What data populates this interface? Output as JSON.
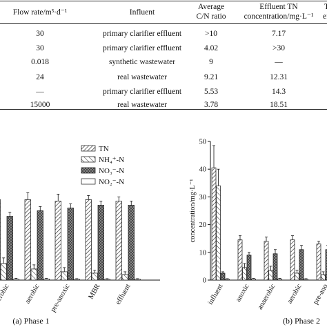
{
  "table": {
    "headers": {
      "flow_rate": "Flow rate/m³·d⁻¹",
      "influent": "Influent",
      "cn_line1": "Average",
      "cn_line2": "C/N ratio",
      "tn_line1": "Effluent TN",
      "tn_line2": "concentration/mg·L⁻¹",
      "cut_line1": "TN",
      "cut_line2": "ef"
    },
    "rows": [
      {
        "flow": "30",
        "influent": "primary clarifier effluent",
        "cn": ">10",
        "tn": "7.17"
      },
      {
        "flow": "30",
        "influent": "primary clarifier effluent",
        "cn": "4.02",
        "tn": ">30"
      },
      {
        "flow": "0.018",
        "influent": "synthetic wastewater",
        "cn": "9",
        "tn": "—"
      },
      {
        "flow": "24",
        "influent": "real wastewater",
        "cn": "9.21",
        "tn": "12.31"
      },
      {
        "flow": "—",
        "influent": "primary clarifier effluent",
        "cn": "5.53",
        "tn": "14.3"
      },
      {
        "flow": "15000",
        "influent": "real wastewater",
        "cn": "3.78",
        "tn": "18.51"
      }
    ]
  },
  "colors": {
    "ink": "#111111",
    "light_fill": "#e8e8e8",
    "dark_fill": "#8a8a8a"
  },
  "chart_data": [
    {
      "type": "bar",
      "caption": "(a) Phase 1",
      "categories": [
        "aerobic",
        "aerobic",
        "pre-anoxic",
        "MBR",
        "effluent"
      ],
      "legend": [
        "TN",
        "NH₄⁺-N",
        "NO₃⁻-N",
        "NO₂⁻-N"
      ],
      "legend_position": "top-right",
      "ylim": [
        0,
        50
      ],
      "series": [
        {
          "name": "TN",
          "values": [
            29,
            29,
            28.5,
            29,
            28.5
          ],
          "errors": [
            2.5,
            2.5,
            2.5,
            1.5,
            1.5
          ]
        },
        {
          "name": "NH₄⁺-N",
          "values": [
            6,
            4,
            3,
            2.5,
            2
          ],
          "errors": [
            2,
            1.5,
            1.5,
            1,
            1
          ]
        },
        {
          "name": "NO₃⁻-N",
          "values": [
            23,
            25,
            26,
            27,
            27
          ],
          "errors": [
            1.5,
            1.5,
            1.5,
            1.5,
            1.5
          ]
        },
        {
          "name": "NO₂⁻-N",
          "values": [
            0.4,
            0.4,
            0.3,
            0.3,
            0.3
          ],
          "errors": [
            0.2,
            0.2,
            0.2,
            0.2,
            0.2
          ]
        }
      ]
    },
    {
      "type": "bar",
      "caption": "(b) Phase 2",
      "ylabel": "concentration/mg·L⁻¹",
      "categories": [
        "influent",
        "anoxic",
        "anaerobic",
        "aerobic",
        "pre-ano"
      ],
      "ylim": [
        0,
        50
      ],
      "yticks": [
        "0",
        "10",
        "20",
        "30",
        "40",
        "50"
      ],
      "series": [
        {
          "name": "TN",
          "values": [
            40.5,
            14.5,
            14,
            14.5,
            13
          ],
          "errors": [
            8,
            1.5,
            1.5,
            1.5,
            1
          ]
        },
        {
          "name": "NH₄⁺-N",
          "values": [
            34,
            4.5,
            3.5,
            2.5,
            2
          ],
          "errors": [
            6,
            1.5,
            1.5,
            1,
            1
          ]
        },
        {
          "name": "NO₃⁻-N",
          "values": [
            2.5,
            9,
            9.5,
            11,
            11
          ],
          "errors": [
            0.5,
            1,
            1.5,
            1.5,
            1.5
          ]
        },
        {
          "name": "NO₂⁻-N",
          "values": [
            0.3,
            0.4,
            0.4,
            0.3,
            0.3
          ],
          "errors": [
            0.2,
            0.2,
            0.2,
            0.2,
            0.2
          ]
        }
      ]
    }
  ]
}
